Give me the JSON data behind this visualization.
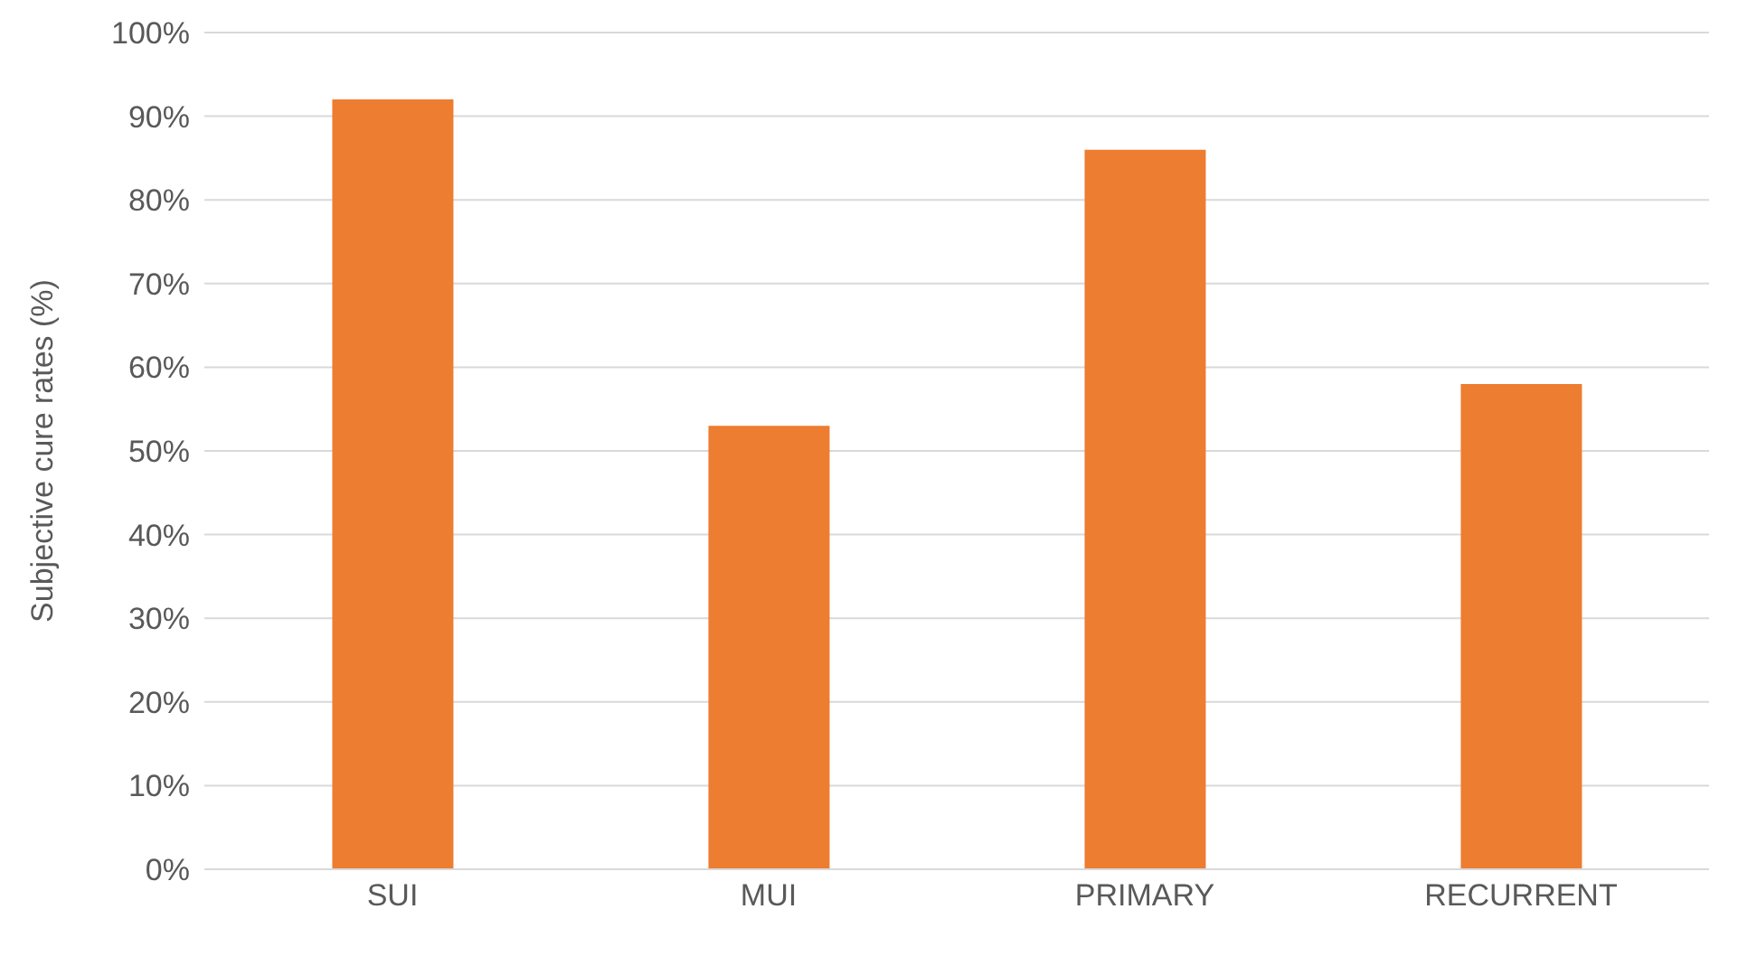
{
  "chart_data": {
    "type": "bar",
    "ylabel": "Subjective cure rates (%)",
    "categories": [
      "SUI",
      "MUI",
      "PRIMARY",
      "RECURRENT"
    ],
    "values": [
      92,
      53,
      86,
      58
    ],
    "color": "#ed7d31",
    "ylim": [
      0,
      100
    ],
    "yticks": [
      {
        "value": 0,
        "label": "0%"
      },
      {
        "value": 10,
        "label": "10%"
      },
      {
        "value": 20,
        "label": "20%"
      },
      {
        "value": 30,
        "label": "30%"
      },
      {
        "value": 40,
        "label": "40%"
      },
      {
        "value": 50,
        "label": "50%"
      },
      {
        "value": 60,
        "label": "60%"
      },
      {
        "value": 70,
        "label": "70%"
      },
      {
        "value": 80,
        "label": "80%"
      },
      {
        "value": 90,
        "label": "90%"
      },
      {
        "value": 100,
        "label": "100%"
      }
    ],
    "grid": "y",
    "legend": false
  }
}
